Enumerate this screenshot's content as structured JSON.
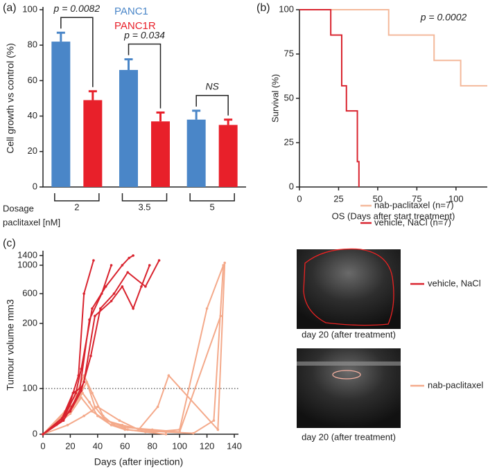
{
  "chart_data": [
    {
      "type": "bar",
      "title": "(a)",
      "ylabel": "Cell growth vs control (%)",
      "xlabel_lines": [
        "Dosage",
        "paclitaxel [nM]"
      ],
      "categories": [
        "2",
        "3.5",
        "5"
      ],
      "series": [
        {
          "name": "PANC1",
          "color": "#4a86c8",
          "values": [
            82,
            66,
            38
          ],
          "errors": [
            5,
            6,
            5
          ]
        },
        {
          "name": "PANC1R",
          "color": "#e8202a",
          "values": [
            49,
            37,
            35
          ],
          "errors": [
            5,
            5,
            3
          ]
        }
      ],
      "significance": [
        "p = 0.0082",
        "p = 0.034",
        "NS"
      ],
      "ylim": [
        0,
        100
      ],
      "yticks": [
        0,
        20,
        40,
        60,
        80,
        100
      ]
    },
    {
      "type": "step",
      "title": "(b)",
      "ylabel": "Survival (%)",
      "xlabel": "OS (Days after start treatment)",
      "annotation": "p = 0.0002",
      "series": [
        {
          "name": "nab-paclitaxel (n=7)",
          "color": "#f4b89a",
          "x": [
            0,
            57,
            86,
            103,
            120
          ],
          "values": [
            100,
            85.7,
            71.4,
            57.1,
            57.1
          ]
        },
        {
          "name": "vehicle, NaCl (n=7)",
          "color": "#d9232e",
          "x": [
            0,
            20,
            27,
            30,
            37,
            38
          ],
          "values": [
            100,
            85.7,
            57.1,
            42.9,
            14.3,
            0
          ]
        }
      ],
      "xlim": [
        0,
        120
      ],
      "xticks": [
        0,
        25,
        50,
        75,
        100
      ],
      "ylim": [
        0,
        100
      ],
      "yticks": [
        0,
        25,
        50,
        75,
        100
      ]
    },
    {
      "type": "spaghetti",
      "title": "(c)",
      "ylabel": "Tumour volume mm3",
      "xlabel": "Days (after injection)",
      "hline": 100,
      "caption": "day 20 (after treatment)",
      "groups": [
        {
          "name": "vehicle, NaCl",
          "color": "#d9232e",
          "lines": [
            {
              "x": [
                0,
                14,
                20,
                26,
                30,
                37
              ],
              "values": [
                0,
                30,
                70,
                120,
                600,
                1200
              ]
            },
            {
              "x": [
                0,
                14,
                22,
                27,
                34,
                43,
                50
              ],
              "values": [
                0,
                35,
                90,
                100,
                250,
                600,
                1000
              ]
            },
            {
              "x": [
                0,
                16,
                24,
                28,
                36,
                46,
                58,
                63,
                66
              ],
              "values": [
                0,
                40,
                90,
                130,
                400,
                700,
                1000,
                1300,
                1400
              ]
            },
            {
              "x": [
                0,
                15,
                21,
                30,
                38,
                50,
                58,
                66,
                72,
                78
              ],
              "values": [
                0,
                30,
                60,
                110,
                300,
                500,
                700,
                400,
                700,
                1000
              ]
            },
            {
              "x": [
                0,
                20,
                28,
                35,
                42,
                52,
                62,
                75,
                85
              ],
              "values": [
                0,
                50,
                95,
                150,
                400,
                600,
                900,
                700,
                1200
              ]
            }
          ]
        },
        {
          "name": "nab-paclitaxel",
          "color": "#f4a98a",
          "lines": [
            {
              "x": [
                0,
                16,
                24,
                30,
                36,
                44,
                52,
                62,
                75,
                90
              ],
              "values": [
                0,
                50,
                85,
                120,
                90,
                40,
                20,
                10,
                5,
                0
              ]
            },
            {
              "x": [
                0,
                12,
                22,
                29,
                34,
                40,
                50,
                60,
                80,
                100,
                120,
                132
              ],
              "values": [
                0,
                30,
                60,
                90,
                70,
                40,
                20,
                10,
                5,
                10,
                400,
                1000
              ]
            },
            {
              "x": [
                0,
                14,
                26,
                32,
                38,
                46,
                60,
                80,
                100,
                130
              ],
              "values": [
                0,
                40,
                80,
                110,
                60,
                30,
                15,
                10,
                5,
                300
              ]
            },
            {
              "x": [
                0,
                18,
                30,
                40,
                56,
                70,
                84,
                92,
                128,
                133
              ],
              "values": [
                0,
                20,
                40,
                60,
                30,
                10,
                60,
                120,
                10,
                1100
              ]
            },
            {
              "x": [
                0,
                10,
                20,
                28,
                36,
                46,
                58,
                72,
                90,
                110,
                125,
                132
              ],
              "values": [
                0,
                20,
                45,
                80,
                50,
                30,
                20,
                10,
                5,
                2,
                30,
                1000
              ]
            }
          ]
        }
      ],
      "xlim": [
        0,
        140
      ],
      "xticks": [
        0,
        20,
        40,
        60,
        80,
        100,
        120,
        140
      ],
      "yticks": [
        0,
        100,
        200,
        600,
        1000,
        1400
      ]
    }
  ]
}
